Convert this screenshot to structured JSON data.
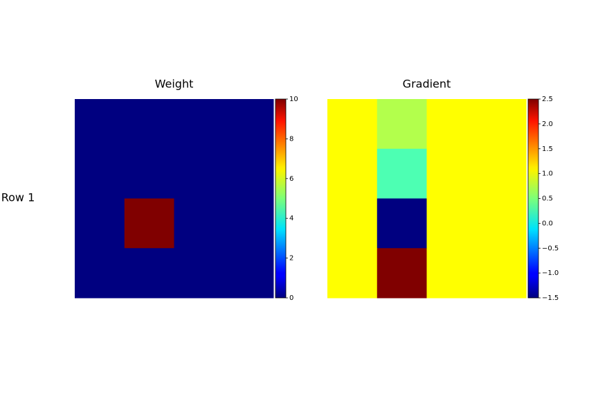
{
  "row_label": "Row 1",
  "chart_data": [
    {
      "type": "heatmap",
      "title": "Weight",
      "colormap": "jet",
      "values": [
        [
          0,
          0,
          0,
          0
        ],
        [
          0,
          0,
          0,
          0
        ],
        [
          0,
          10,
          0,
          0
        ],
        [
          0,
          0,
          0,
          0
        ]
      ],
      "clim": [
        0,
        10
      ],
      "cticks": [
        0,
        2,
        4,
        6,
        8,
        10
      ]
    },
    {
      "type": "heatmap",
      "title": "Gradient",
      "colormap": "jet",
      "values": [
        [
          1.0,
          0.7,
          1.0,
          1.0
        ],
        [
          1.0,
          0.3,
          1.0,
          1.0
        ],
        [
          1.0,
          -1.5,
          1.0,
          1.0
        ],
        [
          1.0,
          2.5,
          1.0,
          1.0
        ]
      ],
      "clim": [
        -1.5,
        2.5
      ],
      "cticks": [
        {
          "value": -1.5,
          "label": "−1.5"
        },
        {
          "value": -1.0,
          "label": "−1.0"
        },
        {
          "value": -0.5,
          "label": "−0.5"
        },
        {
          "value": 0.0,
          "label": "0.0"
        },
        0.5,
        {
          "value": 1.0,
          "label": "1.0"
        },
        1.5,
        {
          "value": 2.0,
          "label": "2.0"
        },
        2.5
      ]
    }
  ]
}
